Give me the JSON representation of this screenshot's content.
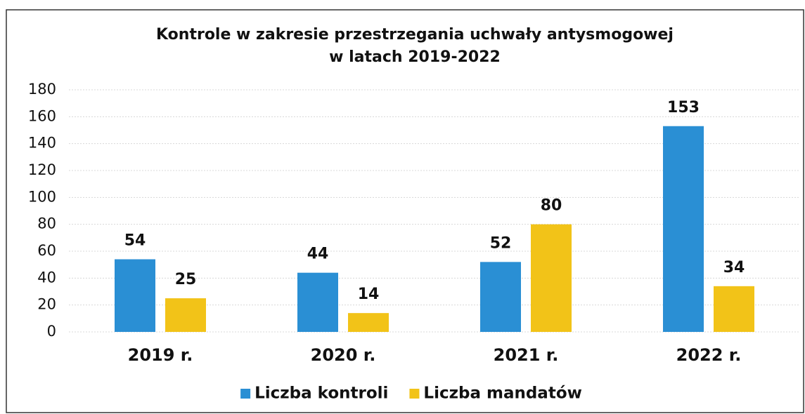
{
  "chart_data": {
    "type": "bar",
    "title": [
      "Kontrole w zakresie przestrzegania uchwały antysmogowej",
      "w latach 2019-2022"
    ],
    "categories": [
      "2019 r.",
      "2020 r.",
      "2021 r.",
      "2022 r."
    ],
    "series": [
      {
        "name": "Liczba kontroli",
        "color": "#2a8fd4",
        "values": [
          54,
          44,
          52,
          153
        ]
      },
      {
        "name": "Liczba mandatów",
        "color": "#f2c318",
        "values": [
          25,
          14,
          80,
          34
        ]
      }
    ],
    "ylim": [
      0,
      180
    ],
    "yticks": [
      0,
      20,
      40,
      60,
      80,
      100,
      120,
      140,
      160,
      180
    ],
    "grid": true,
    "legend": "bottom"
  }
}
